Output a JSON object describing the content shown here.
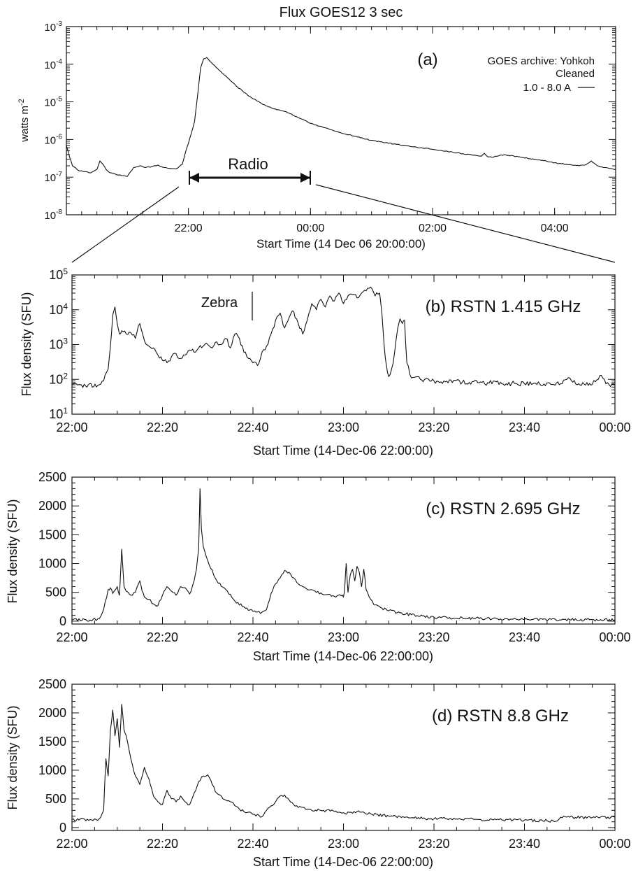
{
  "figure": {
    "colors": {
      "ink": "#111111",
      "background": "#ffffff"
    }
  },
  "chart_data": [
    {
      "id": "a",
      "type": "line",
      "title": "Flux  GOES12 3 sec",
      "panel_label": "(a)",
      "legend_lines": [
        "GOES archive: Yohkoh",
        "Cleaned",
        "1.0 - 8.0 A"
      ],
      "legend_placement": "top-right",
      "xlabel": "Start Time (14 Dec 06 20:00:00)",
      "ylabel": "watts m",
      "ylabel_sup": "-2",
      "yscale": "log",
      "xlim_hours": [
        20.0,
        29.0
      ],
      "ylim": [
        1e-08,
        0.001
      ],
      "x_tick_labels": [
        "22:00",
        "00:00",
        "02:00",
        "04:00"
      ],
      "x_tick_hours": [
        22,
        24,
        26,
        28
      ],
      "y_tick_labels": [
        {
          "base": "10",
          "exp": "-8"
        },
        {
          "base": "10",
          "exp": "-7"
        },
        {
          "base": "10",
          "exp": "-6"
        },
        {
          "base": "10",
          "exp": "-5"
        },
        {
          "base": "10",
          "exp": "-4"
        },
        {
          "base": "10",
          "exp": "-3"
        }
      ],
      "annotation": "Radio",
      "radio_interval_hours": [
        22.0,
        24.0
      ],
      "series": [
        {
          "x_hours": [
            20.0,
            20.05,
            20.1,
            20.2,
            20.3,
            20.4,
            20.5,
            20.55,
            20.6,
            20.65,
            20.7,
            20.8,
            20.9,
            21.0,
            21.1,
            21.2,
            21.3,
            21.4,
            21.5,
            21.6,
            21.7,
            21.8,
            21.9,
            21.95,
            22.0,
            22.05,
            22.1,
            22.15,
            22.2,
            22.25,
            22.3,
            22.35,
            22.4,
            22.5,
            22.6,
            22.8,
            23.0,
            23.2,
            23.4,
            23.6,
            23.8,
            24.0,
            24.5,
            25.0,
            25.5,
            26.0,
            26.5,
            26.8,
            26.85,
            26.9,
            27.0,
            27.1,
            27.2,
            27.4,
            27.6,
            27.8,
            28.0,
            28.2,
            28.4,
            28.5,
            28.6,
            28.7,
            28.8,
            28.9,
            29.0
          ],
          "y": [
            7e-07,
            3.5e-07,
            2e-07,
            1.5e-07,
            1.4e-07,
            1.3e-07,
            1.6e-07,
            2.7e-07,
            2.2e-07,
            1.6e-07,
            1.35e-07,
            1.2e-07,
            1.1e-07,
            1.05e-07,
            1.8e-07,
            2e-07,
            1.8e-07,
            1.9e-07,
            2.1e-07,
            1.8e-07,
            1.7e-07,
            1.65e-07,
            2.2e-07,
            4.5e-07,
            8e-07,
            1.5e-06,
            3e-06,
            1.5e-05,
            8e-05,
            0.00014,
            0.00015,
            0.00012,
            0.0001,
            7e-05,
            5e-05,
            2.5e-05,
            1.4e-05,
            9e-06,
            6.5e-06,
            5.5e-06,
            3.8e-06,
            2.7e-06,
            1.5e-06,
            9.5e-07,
            7e-07,
            5.5e-07,
            4.2e-07,
            3.6e-07,
            4.3e-07,
            3.5e-07,
            3.4e-07,
            3.8e-07,
            3.9e-07,
            3.5e-07,
            3.1e-07,
            2.8e-07,
            2.4e-07,
            2.2e-07,
            2e-07,
            2.1e-07,
            2.7e-07,
            2e-07,
            1.8e-07,
            1.7e-07,
            1.6e-07
          ]
        }
      ]
    },
    {
      "id": "b",
      "type": "line",
      "panel_label": "(b) RSTN 1.415 GHz",
      "annotation": "Zebra",
      "annotation_x_min": 40.3,
      "xlabel": "Start Time (14-Dec-06 22:00:00)",
      "ylabel": "Flux density (SFU)",
      "yscale": "log",
      "xlim_min": [
        0,
        120
      ],
      "ylim": [
        10,
        100000
      ],
      "x_tick_labels": [
        "22:00",
        "22:20",
        "22:40",
        "23:00",
        "23:20",
        "23:40",
        "00:00"
      ],
      "y_tick_labels": [
        {
          "base": "10",
          "exp": "1"
        },
        {
          "base": "10",
          "exp": "2"
        },
        {
          "base": "10",
          "exp": "3"
        },
        {
          "base": "10",
          "exp": "4"
        },
        {
          "base": "10",
          "exp": "5"
        }
      ],
      "series": [
        {
          "x_min": [
            0,
            3,
            6,
            7,
            8,
            8.5,
            9,
            9.5,
            10,
            10.5,
            11,
            12,
            13,
            14,
            15,
            16,
            17,
            18,
            19,
            20,
            21,
            22,
            23,
            24,
            25,
            26,
            27,
            28,
            29,
            30,
            31,
            32,
            33,
            34,
            35,
            36,
            37,
            38,
            39,
            40,
            41,
            42,
            43,
            44,
            45,
            46,
            47,
            48,
            49,
            50,
            51,
            52,
            53,
            54,
            55,
            56,
            57,
            58,
            59,
            60,
            61,
            62,
            63,
            64,
            65,
            66,
            67,
            68,
            68.5,
            69,
            69.5,
            70,
            71,
            72,
            72.5,
            73,
            73.5,
            74,
            75,
            77,
            80,
            90,
            100,
            108,
            110,
            112,
            115,
            117,
            118,
            120
          ],
          "y": [
            70,
            65,
            70,
            90,
            200,
            900,
            7000,
            12000,
            4000,
            2000,
            2500,
            2000,
            2200,
            1500,
            4000,
            1300,
            900,
            800,
            500,
            350,
            300,
            450,
            550,
            400,
            500,
            700,
            600,
            800,
            900,
            1000,
            800,
            1200,
            1000,
            1500,
            800,
            2000,
            1500,
            600,
            400,
            300,
            250,
            600,
            900,
            2000,
            5000,
            8000,
            3000,
            6000,
            9000,
            4000,
            2000,
            5000,
            15000,
            10000,
            20000,
            12000,
            25000,
            18000,
            30000,
            15000,
            25000,
            28000,
            22000,
            30000,
            35000,
            45000,
            25000,
            30000,
            8000,
            900,
            250,
            120,
            300,
            3000,
            5500,
            4000,
            5000,
            300,
            110,
            100,
            90,
            80,
            75,
            75,
            110,
            75,
            72,
            130,
            75,
            70
          ]
        }
      ]
    },
    {
      "id": "c",
      "type": "line",
      "panel_label": "(c) RSTN 2.695 GHz",
      "xlabel": "Start Time (14-Dec-06 22:00:00)",
      "ylabel": "Flux density (SFU)",
      "yscale": "linear",
      "xlim_min": [
        0,
        120
      ],
      "ylim": [
        -50,
        2500
      ],
      "x_tick_labels": [
        "22:00",
        "22:20",
        "22:40",
        "23:00",
        "23:20",
        "23:40",
        "00:00"
      ],
      "y_tick_labels": [
        "0",
        "500",
        "1000",
        "1500",
        "2000",
        "2500"
      ],
      "series": [
        {
          "x_min": [
            0,
            4,
            6,
            7,
            8,
            8.5,
            9,
            10,
            10.5,
            11,
            11.5,
            12,
            13,
            14,
            15,
            15.5,
            16,
            17,
            18,
            19,
            20,
            21,
            22,
            23,
            24,
            25,
            26,
            27,
            27.5,
            28,
            28.3,
            28.6,
            29,
            30,
            32,
            34,
            36,
            38,
            40,
            41,
            42,
            43,
            44,
            45,
            46,
            47,
            48,
            49,
            50,
            51,
            52,
            54,
            56,
            58,
            59.5,
            60,
            60.3,
            60.6,
            61,
            61.5,
            62,
            62.5,
            63,
            63.5,
            64,
            64.5,
            65,
            66,
            67,
            70,
            75,
            80,
            90,
            100,
            110,
            120
          ],
          "y": [
            20,
            20,
            40,
            200,
            550,
            580,
            480,
            600,
            450,
            1250,
            600,
            520,
            450,
            500,
            700,
            520,
            420,
            380,
            300,
            270,
            450,
            600,
            520,
            450,
            600,
            580,
            470,
            700,
            900,
            1250,
            2300,
            1600,
            1300,
            1050,
            700,
            550,
            350,
            250,
            170,
            160,
            155,
            200,
            480,
            650,
            750,
            880,
            850,
            750,
            650,
            600,
            550,
            500,
            460,
            430,
            440,
            420,
            600,
            1000,
            500,
            800,
            900,
            700,
            950,
            850,
            600,
            900,
            550,
            380,
            280,
            180,
            110,
            70,
            45,
            30,
            25,
            20
          ]
        }
      ]
    },
    {
      "id": "d",
      "type": "line",
      "panel_label": "(d) RSTN 8.8 GHz",
      "xlabel": "Start Time (14-Dec-06 22:00:00)",
      "ylabel": "Flux density (SFU)",
      "yscale": "linear",
      "xlim_min": [
        0,
        120
      ],
      "ylim": [
        -50,
        2500
      ],
      "x_tick_labels": [
        "22:00",
        "22:20",
        "22:40",
        "23:00",
        "23:20",
        "23:40",
        "00:00"
      ],
      "y_tick_labels": [
        "0",
        "500",
        "1000",
        "1500",
        "2000",
        "2500"
      ],
      "series": [
        {
          "x_min": [
            0,
            4,
            6,
            7,
            7.5,
            8,
            8.5,
            9,
            9.5,
            10,
            10.5,
            11,
            11.5,
            12,
            13,
            14,
            15,
            16,
            17,
            18,
            19,
            20,
            21,
            22,
            23,
            24,
            25,
            26,
            27,
            28,
            29,
            30,
            31,
            32,
            33,
            34,
            35,
            36,
            37,
            38,
            40,
            42,
            43,
            44,
            45,
            46,
            47,
            48,
            49,
            50,
            52,
            55,
            58,
            60,
            62,
            63,
            64,
            66,
            70,
            75,
            80,
            81,
            85,
            90,
            95,
            100,
            105,
            107,
            108,
            110,
            115,
            120
          ],
          "y": [
            140,
            140,
            150,
            300,
            1200,
            900,
            1700,
            2050,
            1600,
            1900,
            1400,
            2150,
            1700,
            1600,
            1200,
            900,
            750,
            1050,
            850,
            550,
            450,
            400,
            650,
            500,
            450,
            550,
            450,
            400,
            600,
            800,
            900,
            920,
            750,
            600,
            550,
            480,
            450,
            380,
            320,
            280,
            230,
            190,
            300,
            380,
            450,
            550,
            570,
            480,
            400,
            350,
            320,
            300,
            280,
            260,
            250,
            280,
            270,
            240,
            200,
            170,
            150,
            160,
            150,
            140,
            135,
            130,
            120,
            110,
            180,
            180,
            175,
            180
          ]
        }
      ]
    }
  ]
}
